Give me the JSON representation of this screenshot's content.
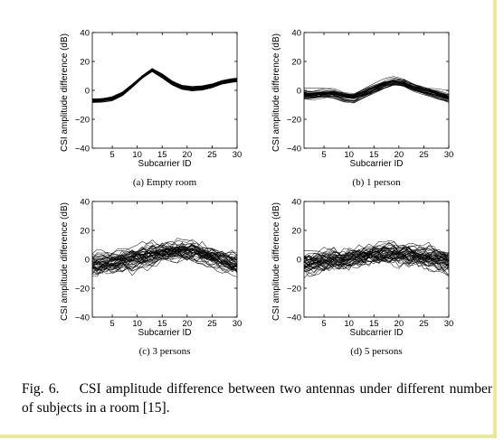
{
  "figure": {
    "caption_label": "Fig. 6.",
    "caption_text": "CSI amplitude difference between two antennas under different number of subjects in a room [15]."
  },
  "chart_data": [
    {
      "type": "line",
      "subcaption": "(a) Empty room",
      "xlabel": "Subcarrier ID",
      "ylabel": "CSI amplitude difference (dB)",
      "xlim": [
        1,
        30
      ],
      "ylim": [
        -40,
        40
      ],
      "xticks": [
        5,
        10,
        15,
        20,
        25,
        30
      ],
      "yticks": [
        -40,
        -20,
        0,
        20,
        40
      ],
      "series_count": 40,
      "mean_curve": {
        "x": [
          1,
          3,
          5,
          7,
          9,
          11,
          13,
          15,
          17,
          19,
          21,
          23,
          25,
          27,
          29,
          30
        ],
        "y": [
          -7,
          -6.5,
          -5.5,
          -2.5,
          3,
          9,
          14,
          10,
          5,
          2,
          1,
          1.5,
          3,
          5.5,
          7,
          7.5
        ]
      },
      "spread_db": 1.5
    },
    {
      "type": "line",
      "subcaption": "(b) 1 person",
      "xlabel": "Subcarrier ID",
      "ylabel": "CSI amplitude difference (dB)",
      "xlim": [
        1,
        30
      ],
      "ylim": [
        -40,
        40
      ],
      "xticks": [
        5,
        10,
        15,
        20,
        25,
        30
      ],
      "yticks": [
        -40,
        -20,
        0,
        20,
        40
      ],
      "series_count": 40,
      "mean_curve": {
        "x": [
          1,
          3,
          5,
          7,
          9,
          11,
          13,
          15,
          17,
          19,
          21,
          23,
          25,
          27,
          29,
          30
        ],
        "y": [
          -3,
          -3,
          -2,
          -2,
          -4,
          -5,
          -2,
          1,
          4,
          6,
          5,
          2,
          0,
          -2,
          -4,
          -5
        ]
      },
      "spread_db": 4
    },
    {
      "type": "line",
      "subcaption": "(c) 3 persons",
      "xlabel": "Subcarrier ID",
      "ylabel": "CSI amplitude difference (dB)",
      "xlim": [
        1,
        30
      ],
      "ylim": [
        -40,
        40
      ],
      "xticks": [
        5,
        10,
        15,
        20,
        25,
        30
      ],
      "yticks": [
        -40,
        -20,
        0,
        20,
        40
      ],
      "series_count": 45,
      "mean_curve": {
        "x": [
          1,
          3,
          5,
          7,
          9,
          11,
          13,
          15,
          17,
          19,
          21,
          23,
          25,
          27,
          29,
          30
        ],
        "y": [
          -3,
          -3,
          -2,
          -1,
          0,
          1,
          2,
          3,
          4,
          5,
          5,
          4,
          2,
          0,
          -2,
          -3
        ]
      },
      "spread_db": 9
    },
    {
      "type": "line",
      "subcaption": "(d) 5 persons",
      "xlabel": "Subcarrier ID",
      "ylabel": "CSI amplitude difference (dB)",
      "xlim": [
        1,
        30
      ],
      "ylim": [
        -40,
        40
      ],
      "xticks": [
        5,
        10,
        15,
        20,
        25,
        30
      ],
      "yticks": [
        -40,
        -20,
        0,
        20,
        40
      ],
      "series_count": 45,
      "mean_curve": {
        "x": [
          1,
          3,
          5,
          7,
          9,
          11,
          13,
          15,
          17,
          19,
          21,
          23,
          25,
          27,
          29,
          30
        ],
        "y": [
          -3,
          -2,
          -1,
          0,
          -1,
          1,
          2,
          3,
          4,
          4,
          3,
          2,
          1,
          0,
          -1,
          -2
        ]
      },
      "spread_db": 9
    }
  ]
}
